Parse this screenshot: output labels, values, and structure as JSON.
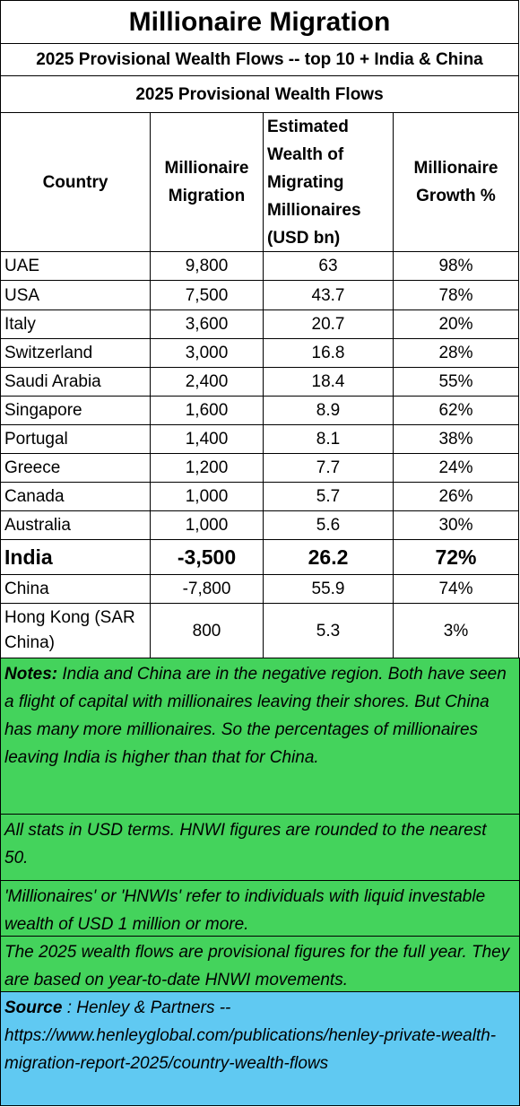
{
  "header": {
    "title": "Millionaire Migration",
    "subtitle": "2025 Provisional Wealth Flows -- top 10 + India & China",
    "table_caption": "2025 Provisional Wealth Flows"
  },
  "table": {
    "columns": [
      "Country",
      "Millionaire Migration",
      "Estimated Wealth of Migrating Millionaires (USD bn)",
      "Millionaire Growth %"
    ],
    "rows": [
      [
        "UAE",
        "9,800",
        "63",
        "98%"
      ],
      [
        "USA",
        "7,500",
        "43.7",
        "78%"
      ],
      [
        "Italy",
        "3,600",
        "20.7",
        "20%"
      ],
      [
        "Switzerland",
        "3,000",
        "16.8",
        "28%"
      ],
      [
        "Saudi Arabia",
        "2,400",
        "18.4",
        "55%"
      ],
      [
        "Singapore",
        "1,600",
        "8.9",
        "62%"
      ],
      [
        "Portugal",
        "1,400",
        "8.1",
        "38%"
      ],
      [
        "Greece",
        "1,200",
        "7.7",
        "24%"
      ],
      [
        "Canada",
        "1,000",
        "5.7",
        "26%"
      ],
      [
        "Australia",
        "1,000",
        "5.6",
        "30%"
      ],
      [
        "India",
        "-3,500",
        "26.2",
        "72%"
      ],
      [
        "China",
        "-7,800",
        "55.9",
        "74%"
      ],
      [
        "Hong Kong (SAR China)",
        "800",
        "5.3",
        "3%"
      ]
    ]
  },
  "notes": [
    {
      "label": "Notes:",
      "text": "India and China are in the negative region.  Both have seen a flight of capital with millionaires leaving their shores.  But China has many more millionaires.  So the percentages of millionaires leaving India is higher than that for China."
    },
    {
      "text": "All stats in USD terms. HNWI figures are rounded to the nearest 50."
    },
    {
      "text": "'Millionaires' or 'HNWIs' refer to individuals with liquid investable wealth of USD 1 million or more."
    },
    {
      "text": "The 2025 wealth flows are provisional figures for the full year. They are based on year-to-date HNWI movements."
    }
  ],
  "source": {
    "label": "Source",
    "text": ": Henley & Partners -- https://www.henleyglobal.com/publications/henley-private-wealth-migration-report-2025/country-wealth-flows"
  }
}
